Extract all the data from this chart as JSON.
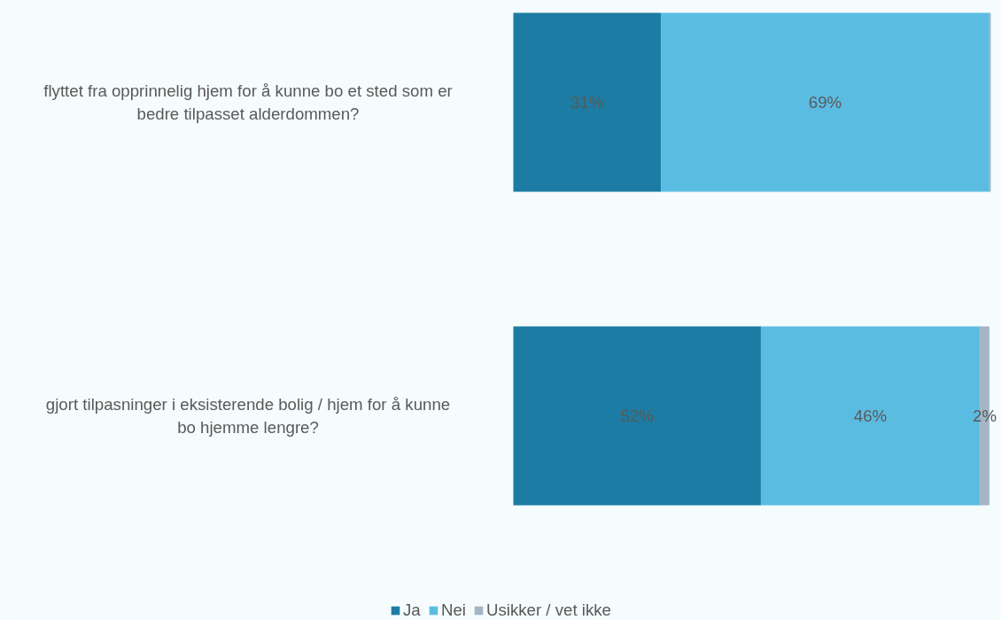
{
  "chart_data": {
    "type": "bar",
    "orientation": "horizontal",
    "stacked": true,
    "legend": "bottom",
    "categories": [
      "flyttet fra opprinnelig hjem for å kunne bo et sted som er bedre tilpasset alderdommen?",
      "gjort tilpasninger i eksisterende bolig / hjem for å kunne bo hjemme lengre?"
    ],
    "series": [
      {
        "name": "Ja",
        "color": "#1c7ca3",
        "values": [
          31,
          52
        ],
        "value_labels": [
          "31%",
          "52%"
        ]
      },
      {
        "name": "Nei",
        "color": "#5bbce2",
        "values": [
          69,
          46
        ],
        "value_labels": [
          "69%",
          "46%"
        ]
      },
      {
        "name": "Usikker / vet ikke",
        "color": "#a3b5c6",
        "values": [
          0.3,
          2
        ],
        "value_labels": [
          null,
          "2%"
        ]
      }
    ]
  }
}
